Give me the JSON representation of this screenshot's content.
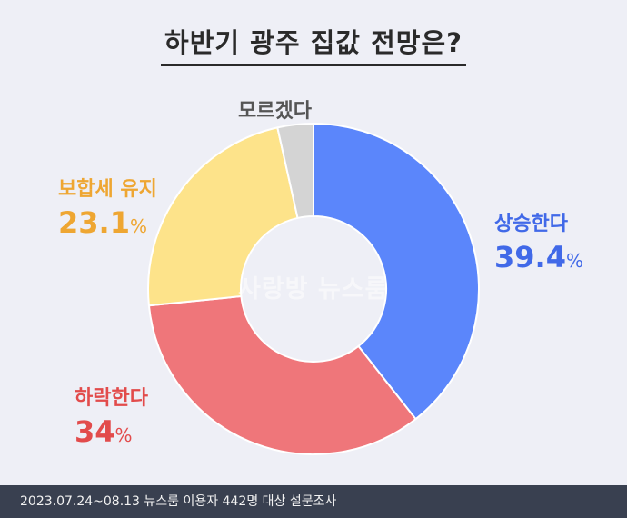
{
  "title": "하반기 광주 집값 전망은?",
  "watermark": "사랑방 뉴스룸",
  "footer": "2023.07.24~08.13 뉴스룸 이용자 442명 대상 설문조사",
  "colors": {
    "up": "#5b86fb",
    "down": "#ef767a",
    "keep": "#fde38a",
    "unknown": "#d4d4d4"
  },
  "chart_data": {
    "type": "pie",
    "donut": true,
    "title": "하반기 광주 집값 전망은?",
    "slices": [
      {
        "label": "상승한다",
        "value": 39.4,
        "display": "39.4",
        "unit": "%"
      },
      {
        "label": "하락한다",
        "value": 34,
        "display": "34",
        "unit": "%"
      },
      {
        "label": "보합세 유지",
        "value": 23.1,
        "display": "23.1",
        "unit": "%"
      },
      {
        "label": "모르겠다",
        "value": 3.5,
        "display": "",
        "unit": ""
      }
    ]
  }
}
